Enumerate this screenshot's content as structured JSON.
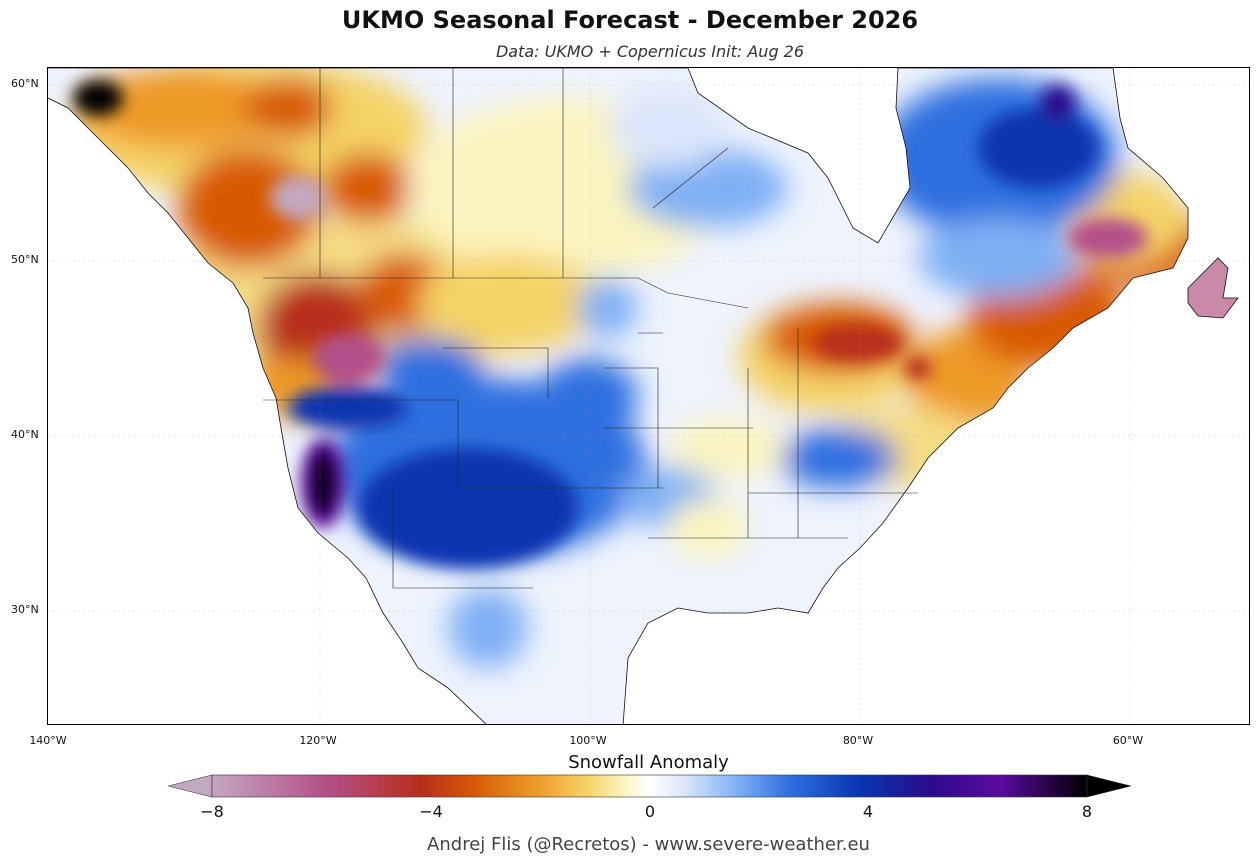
{
  "title": "UKMO Seasonal Forecast - December 2026",
  "subtitle": "Data: UKMO + Copernicus   Init: Aug 26",
  "map": {
    "lat_labels": [
      "60°N",
      "50°N",
      "40°N",
      "30°N"
    ],
    "lon_labels": [
      "140°W",
      "120°W",
      "100°W",
      "80°W",
      "60°W"
    ],
    "extent": {
      "lon_min": -140,
      "lon_max": -51,
      "lat_min": 23.5,
      "lat_max": 61
    }
  },
  "colorbar": {
    "title": "Snowfall Anomaly",
    "ticks": [
      "−8",
      "−4",
      "0",
      "4",
      "8"
    ],
    "min": -8,
    "max": 8,
    "extend": "both",
    "colors": [
      "#c2a8c0",
      "#b4508a",
      "#b82d1a",
      "#d85a06",
      "#ee9a28",
      "#f5d366",
      "#fbf4c0",
      "#ffffff",
      "#dbe6fa",
      "#7fb0f4",
      "#2f6fe0",
      "#0836b0",
      "#2a0c8c",
      "#5a0aa0",
      "#000000"
    ]
  },
  "credit": "Andrej Flis (@Recretos) - www.severe-weather.eu"
}
